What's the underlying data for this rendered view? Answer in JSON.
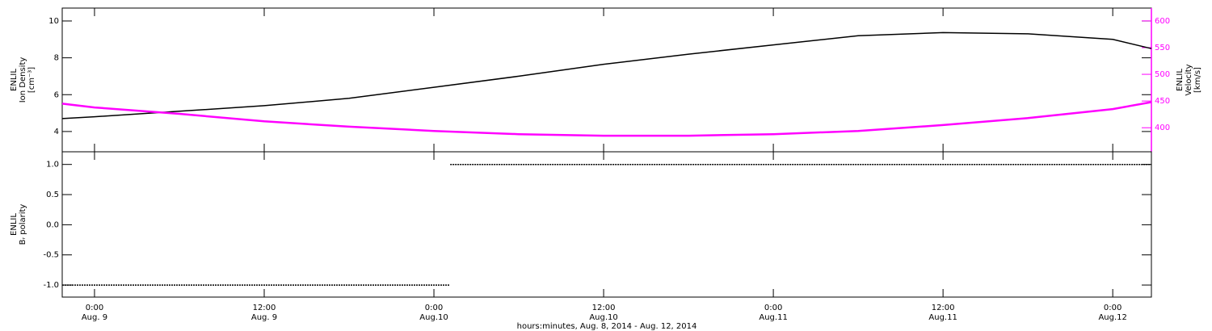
{
  "chart_data": [
    {
      "type": "line",
      "ylabel": [
        "ENLIL",
        "Ion Density",
        "[cm⁻³]"
      ],
      "y2label": [
        "ENLIL",
        "Velocity",
        "[km/s]"
      ],
      "x": [
        "2014-08-08T21:43",
        "2014-08-09T00:00",
        "2014-08-09T06:00",
        "2014-08-09T12:00",
        "2014-08-09T18:00",
        "2014-08-10T00:00",
        "2014-08-10T06:00",
        "2014-08-10T12:00",
        "2014-08-10T18:00",
        "2014-08-11T00:00",
        "2014-08-11T06:00",
        "2014-08-11T12:00",
        "2014-08-11T18:00",
        "2014-08-12T00:00",
        "2014-08-12T02:44"
      ],
      "series": [
        {
          "color": "#000000",
          "values": [
            4.7,
            4.8,
            5.1,
            5.4,
            5.8,
            6.4,
            7.0,
            7.65,
            8.2,
            8.7,
            9.2,
            9.37,
            9.3,
            9.0,
            8.5
          ]
        },
        {
          "color": "#ff00ff",
          "axis": "y2",
          "values": [
            445,
            438,
            426,
            412,
            402,
            394,
            388,
            385,
            385,
            388,
            394,
            405,
            418,
            435,
            448
          ]
        }
      ],
      "xlim": [
        "2014-08-08T21:43",
        "2014-08-12T02:44"
      ],
      "ylim": [
        2.9,
        10.7
      ],
      "yticks": [
        4,
        6,
        8,
        10
      ],
      "y2lim": [
        355,
        624
      ],
      "y2ticks": [
        400,
        450,
        500,
        550,
        600
      ]
    },
    {
      "type": "line",
      "ylabel": [
        "ENLIL",
        "Bᵣ polarity"
      ],
      "xlabel": "hours:minutes, Aug.  8, 2014 - Aug. 12, 2014",
      "series": [
        {
          "color": "#000000",
          "x": [
            "2014-08-08T21:43",
            "2014-08-10T01:08"
          ],
          "values": [
            -1,
            -1
          ]
        },
        {
          "color": "#000000",
          "x": [
            "2014-08-10T01:09",
            "2014-08-12T02:44"
          ],
          "values": [
            1,
            1
          ]
        }
      ],
      "xlim": [
        "2014-08-08T21:43",
        "2014-08-12T02:44"
      ],
      "xticks": [
        {
          "value": "2014-08-09T00:00",
          "label": "0:00",
          "date": "Aug. 9"
        },
        {
          "value": "2014-08-09T12:00",
          "label": "12:00",
          "date": "Aug. 9"
        },
        {
          "value": "2014-08-10T00:00",
          "label": "0:00",
          "date": "Aug.10"
        },
        {
          "value": "2014-08-10T12:00",
          "label": "12:00",
          "date": "Aug.10"
        },
        {
          "value": "2014-08-11T00:00",
          "label": "0:00",
          "date": "Aug.11"
        },
        {
          "value": "2014-08-11T12:00",
          "label": "12:00",
          "date": "Aug.11"
        },
        {
          "value": "2014-08-12T00:00",
          "label": "0:00",
          "date": "Aug.12"
        }
      ],
      "ylim": [
        -1.2,
        1.21
      ],
      "yticks": [
        {
          "value": -1,
          "label": "-1.0"
        },
        {
          "value": -0.5,
          "label": "-0.5"
        },
        {
          "value": 0,
          "label": "0.0"
        },
        {
          "value": 0.5,
          "label": "0.5"
        },
        {
          "value": 1,
          "label": "1.0"
        }
      ]
    }
  ]
}
